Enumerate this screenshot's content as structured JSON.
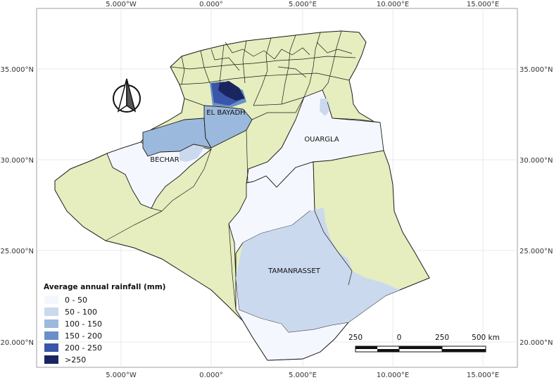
{
  "axes": {
    "top_ticks": [
      "5.000°W",
      "0.000°",
      "5.000°E",
      "10.000°E",
      "15.000°E"
    ],
    "bottom_ticks": [
      "5.000°W",
      "0.000°",
      "5.000°E",
      "10.000°E",
      "15.000°E"
    ],
    "left_ticks": [
      "35.000°N",
      "30.000°N",
      "25.000°N",
      "20.000°N"
    ],
    "right_ticks": [
      "35.000°N",
      "30.000°N",
      "25.000°N",
      "20.000°N"
    ]
  },
  "regions": {
    "el_bayadh": "EL BAYADH",
    "bechar": "BECHAR",
    "ouargla": "OUARGLA",
    "tamanrasset": "TAMANRASSET"
  },
  "legend": {
    "title": "Average annual rainfall (mm)",
    "items": [
      {
        "label": "0 - 50",
        "color": "#f4f8fe"
      },
      {
        "label": "50 - 100",
        "color": "#cbd9ee"
      },
      {
        "label": "100 - 150",
        "color": "#9ab9dc"
      },
      {
        "label": "150 - 200",
        "color": "#6a90c9"
      },
      {
        "label": "200 - 250",
        "color": "#3a56a8"
      },
      {
        "label": ">250",
        "color": "#1a2560"
      }
    ]
  },
  "scale_bar": {
    "labels": [
      "250",
      "0",
      "250",
      "500 km"
    ]
  },
  "colors": {
    "land": "#e6edbe",
    "border": "#1a1a1a",
    "grid": "#e3e3e3"
  },
  "north_arrow": "north-arrow-icon"
}
